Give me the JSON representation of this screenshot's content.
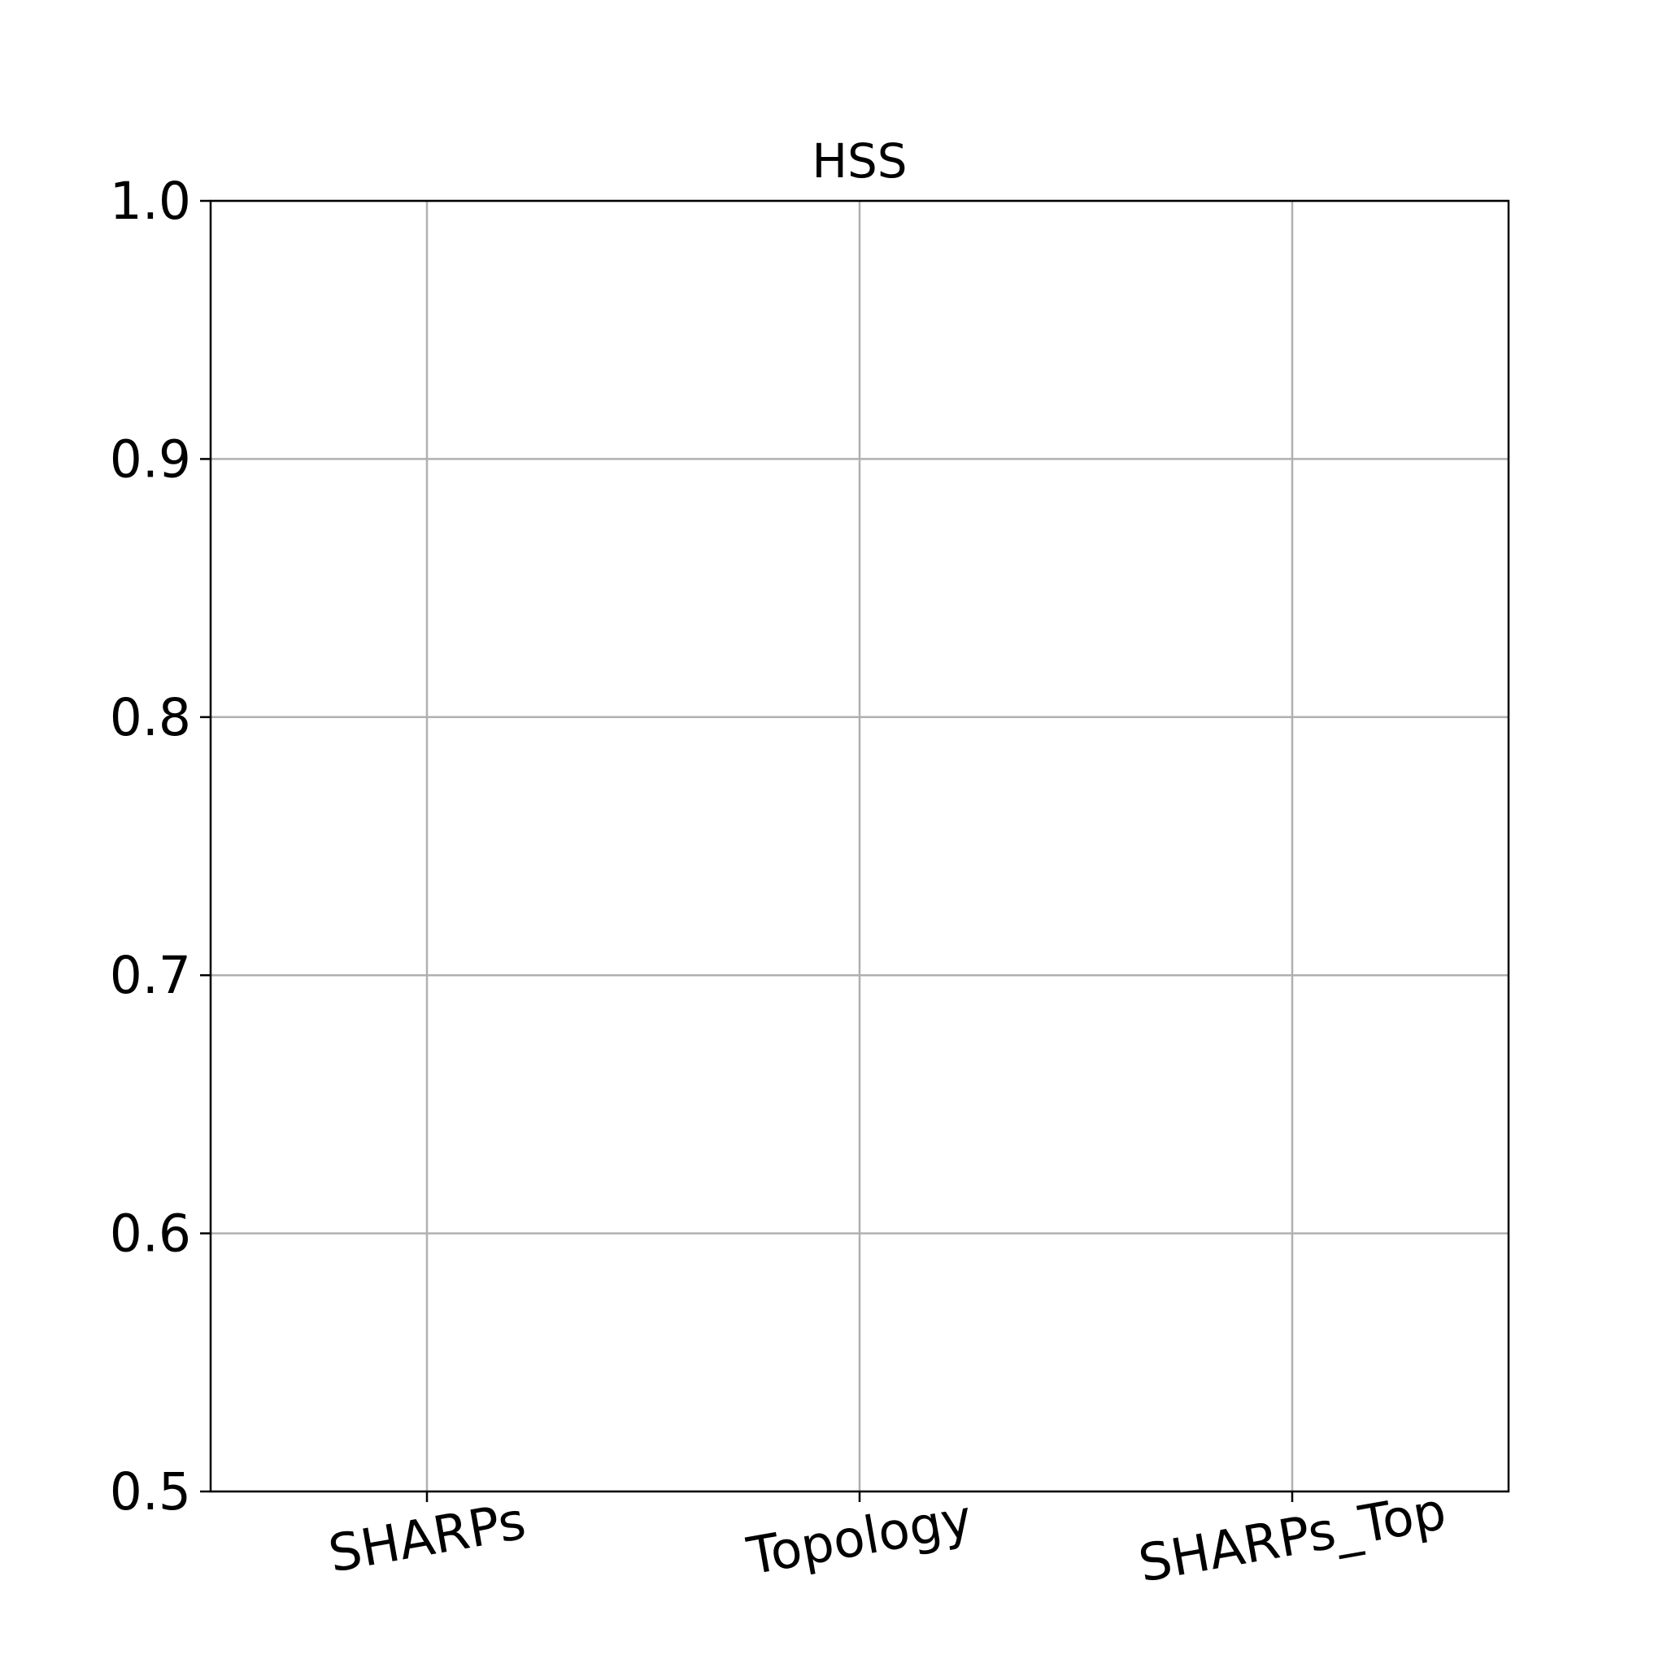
{
  "chart_data": {
    "type": "bar",
    "title": "HSS",
    "categories": [
      "SHARPs",
      "Topology",
      "SHARPs_Top"
    ],
    "ylim": [
      0.5,
      1.0
    ],
    "yticks": [
      {
        "value": 0.5,
        "label": "0.5"
      },
      {
        "value": 0.6,
        "label": "0.6"
      },
      {
        "value": 0.7,
        "label": "0.7"
      },
      {
        "value": 0.8,
        "label": "0.8"
      },
      {
        "value": 0.9,
        "label": "0.9"
      },
      {
        "value": 1.0,
        "label": "1.0"
      }
    ],
    "grid": true
  }
}
